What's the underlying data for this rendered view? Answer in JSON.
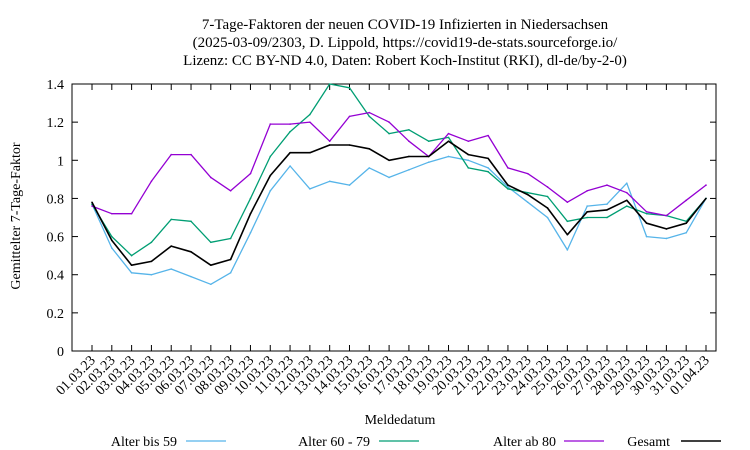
{
  "chart_data": {
    "type": "line",
    "title_lines": [
      "7-Tage-Faktoren der neuen COVID-19 Infizierten in Niedersachsen",
      "(2025-03-09/2303, D. Lippold, https://covid19-de-stats.sourceforge.io/",
      "Lizenz: CC BY-ND 4.0, Daten: Robert Koch-Institut (RKI), dl-de/by-2-0)"
    ],
    "xlabel": "Meldedatum",
    "ylabel": "Gemittelter 7-Tage-Faktor",
    "ylim": [
      0,
      1.4
    ],
    "yticks": [
      "0",
      "0.2",
      "0.4",
      "0.6",
      "0.8",
      "1",
      "1.2",
      "1.4"
    ],
    "categories": [
      "01.03.23",
      "02.03.23",
      "03.03.23",
      "04.03.23",
      "05.03.23",
      "06.03.23",
      "07.03.23",
      "08.03.23",
      "09.03.23",
      "10.03.23",
      "11.03.23",
      "12.03.23",
      "13.03.23",
      "14.03.23",
      "15.03.23",
      "16.03.23",
      "17.03.23",
      "18.03.23",
      "19.03.23",
      "20.03.23",
      "21.03.23",
      "22.03.23",
      "23.03.23",
      "24.03.23",
      "25.03.23",
      "26.03.23",
      "27.03.23",
      "28.03.23",
      "29.03.23",
      "30.03.23",
      "31.03.23",
      "01.04.23"
    ],
    "legend_placement": "bottom",
    "series": [
      {
        "name": "Alter bis 59",
        "color": "#56b4e9",
        "values": [
          0.77,
          0.54,
          0.41,
          0.4,
          0.43,
          0.39,
          0.35,
          0.41,
          0.62,
          0.84,
          0.97,
          0.85,
          0.89,
          0.87,
          0.96,
          0.91,
          0.95,
          0.99,
          1.02,
          1.0,
          0.96,
          0.86,
          0.78,
          0.7,
          0.53,
          0.76,
          0.77,
          0.88,
          0.6,
          0.59,
          0.62,
          0.8
        ]
      },
      {
        "name": "Alter 60 - 79",
        "color": "#009e73",
        "values": [
          0.77,
          0.6,
          0.5,
          0.57,
          0.69,
          0.68,
          0.57,
          0.59,
          0.8,
          1.02,
          1.15,
          1.24,
          1.4,
          1.38,
          1.23,
          1.14,
          1.16,
          1.1,
          1.12,
          0.96,
          0.94,
          0.85,
          0.83,
          0.81,
          0.68,
          0.7,
          0.7,
          0.76,
          0.72,
          0.71,
          0.68,
          0.8
        ]
      },
      {
        "name": "Alter ab 80",
        "color": "#9400d3",
        "values": [
          0.76,
          0.72,
          0.72,
          0.89,
          1.03,
          1.03,
          0.91,
          0.84,
          0.93,
          1.19,
          1.19,
          1.2,
          1.1,
          1.23,
          1.25,
          1.2,
          1.1,
          1.02,
          1.14,
          1.1,
          1.13,
          0.96,
          0.93,
          0.86,
          0.78,
          0.84,
          0.87,
          0.83,
          0.73,
          0.71,
          0.79,
          0.87
        ]
      },
      {
        "name": "Gesamt",
        "color": "#000000",
        "values": [
          0.78,
          0.58,
          0.45,
          0.47,
          0.55,
          0.52,
          0.45,
          0.48,
          0.72,
          0.92,
          1.04,
          1.04,
          1.08,
          1.08,
          1.06,
          1.0,
          1.02,
          1.02,
          1.1,
          1.03,
          1.01,
          0.87,
          0.82,
          0.75,
          0.61,
          0.73,
          0.74,
          0.79,
          0.67,
          0.64,
          0.67,
          0.8
        ]
      }
    ]
  }
}
